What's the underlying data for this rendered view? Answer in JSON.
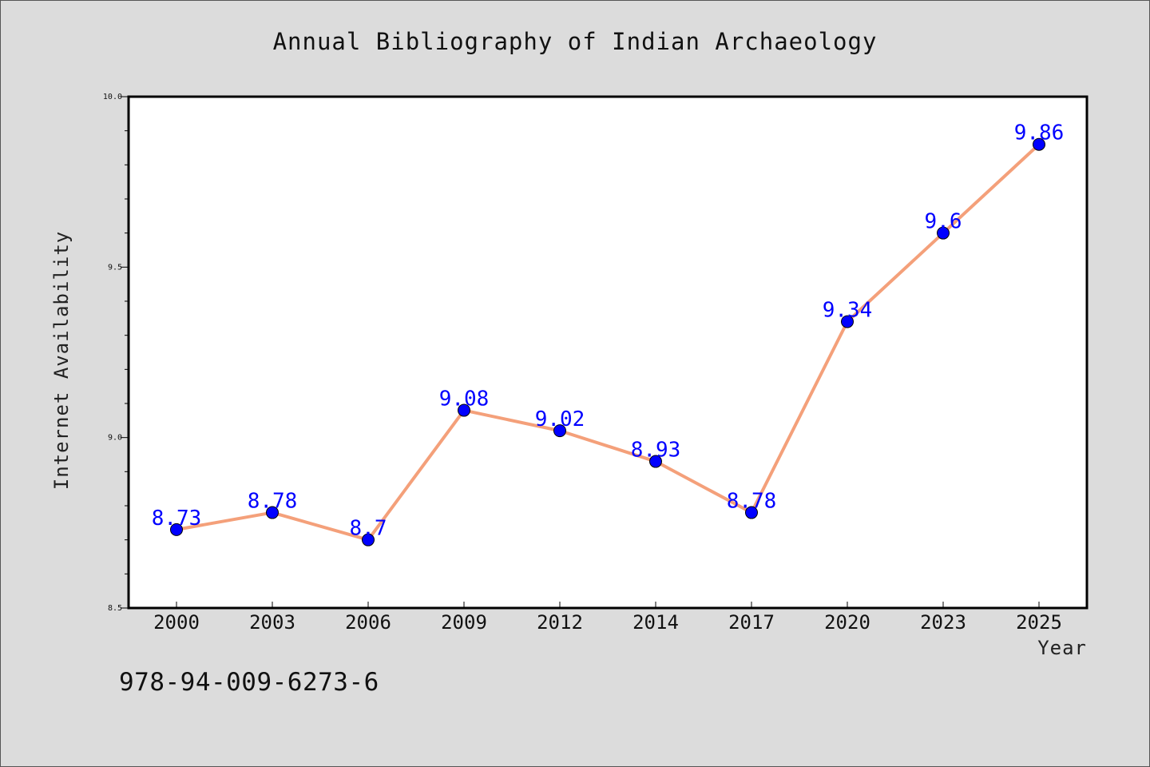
{
  "chart_data": {
    "type": "line",
    "title": "Annual Bibliography of Indian Archaeology",
    "xlabel": "Year",
    "ylabel": "Internet Availability",
    "categories": [
      "2000",
      "2003",
      "2006",
      "2009",
      "2012",
      "2014",
      "2017",
      "2020",
      "2023",
      "2025"
    ],
    "values": [
      8.73,
      8.78,
      8.7,
      9.08,
      9.02,
      8.93,
      8.78,
      9.34,
      9.6,
      9.86
    ],
    "data_labels": [
      "8.73",
      "8.78",
      "8.7",
      "9.08",
      "9.02",
      "8.93",
      "8.78",
      "9.34",
      "9.6",
      "9.86"
    ],
    "ylim": [
      8.5,
      10.0
    ],
    "y_ticks": [
      "8.5",
      "9.0",
      "9.5",
      "10.0"
    ],
    "grid": false,
    "line_color": "#f4a07a",
    "marker_color": "#0000ff",
    "label_color": "#0000ff"
  },
  "footer": {
    "code": "978-94-009-6273-6"
  }
}
